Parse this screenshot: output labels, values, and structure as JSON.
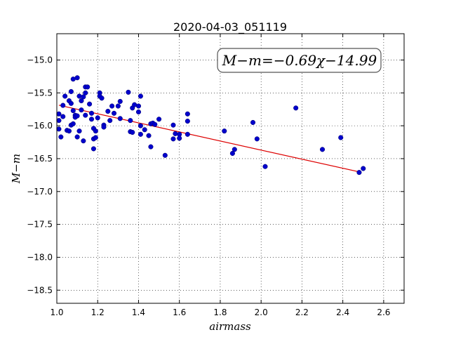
{
  "chart_data": {
    "type": "scatter",
    "title": "2020-04-03_051119",
    "xlabel": "airmass",
    "ylabel": "M−m",
    "xlim": [
      1.0,
      2.7
    ],
    "ylim": [
      -18.7,
      -14.6
    ],
    "x_ticks": [
      "1.0",
      "1.2",
      "1.4",
      "1.6",
      "1.8",
      "2.0",
      "2.2",
      "2.4",
      "2.6"
    ],
    "y_ticks": [
      "−15.0",
      "−15.5",
      "−16.0",
      "−16.5",
      "−17.0",
      "−17.5",
      "−18.0",
      "−18.5"
    ],
    "grid": true,
    "annotation": "M−m=−0.69χ−14.99",
    "annotation_position": "top-right",
    "colors": {
      "points": "#0000cc",
      "fit": "#dd0000"
    },
    "fit": {
      "slope": -0.69,
      "intercept": -14.99,
      "x_range": [
        1.01,
        2.48
      ]
    },
    "points": [
      [
        1.01,
        -15.82
      ],
      [
        1.01,
        -15.92
      ],
      [
        1.01,
        -16.05
      ],
      [
        1.02,
        -16.17
      ],
      [
        1.03,
        -15.69
      ],
      [
        1.03,
        -15.86
      ],
      [
        1.04,
        -15.55
      ],
      [
        1.05,
        -16.07
      ],
      [
        1.06,
        -16.08
      ],
      [
        1.06,
        -15.62
      ],
      [
        1.07,
        -15.48
      ],
      [
        1.07,
        -15.66
      ],
      [
        1.07,
        -15.99
      ],
      [
        1.08,
        -15.29
      ],
      [
        1.08,
        -15.97
      ],
      [
        1.08,
        -15.77
      ],
      [
        1.09,
        -15.84
      ],
      [
        1.09,
        -15.87
      ],
      [
        1.1,
        -15.27
      ],
      [
        1.1,
        -16.17
      ],
      [
        1.1,
        -15.85
      ],
      [
        1.11,
        -16.08
      ],
      [
        1.11,
        -15.55
      ],
      [
        1.12,
        -15.62
      ],
      [
        1.12,
        -15.76
      ],
      [
        1.13,
        -15.56
      ],
      [
        1.13,
        -16.23
      ],
      [
        1.14,
        -15.41
      ],
      [
        1.14,
        -15.5
      ],
      [
        1.14,
        -15.84
      ],
      [
        1.15,
        -15.41
      ],
      [
        1.16,
        -15.67
      ],
      [
        1.17,
        -15.81
      ],
      [
        1.17,
        -15.9
      ],
      [
        1.18,
        -16.2
      ],
      [
        1.18,
        -16.04
      ],
      [
        1.18,
        -16.35
      ],
      [
        1.19,
        -16.08
      ],
      [
        1.19,
        -16.18
      ],
      [
        1.2,
        -15.88
      ],
      [
        1.21,
        -15.5
      ],
      [
        1.21,
        -15.55
      ],
      [
        1.22,
        -15.58
      ],
      [
        1.23,
        -15.99
      ],
      [
        1.23,
        -16.02
      ],
      [
        1.25,
        -15.78
      ],
      [
        1.26,
        -15.92
      ],
      [
        1.27,
        -15.7
      ],
      [
        1.28,
        -15.81
      ],
      [
        1.3,
        -15.7
      ],
      [
        1.31,
        -15.63
      ],
      [
        1.31,
        -15.89
      ],
      [
        1.35,
        -15.49
      ],
      [
        1.36,
        -15.92
      ],
      [
        1.36,
        -16.09
      ],
      [
        1.37,
        -15.73
      ],
      [
        1.37,
        -16.1
      ],
      [
        1.38,
        -15.68
      ],
      [
        1.4,
        -15.7
      ],
      [
        1.4,
        -15.79
      ],
      [
        1.41,
        -15.55
      ],
      [
        1.41,
        -16.0
      ],
      [
        1.41,
        -16.13
      ],
      [
        1.43,
        -16.06
      ],
      [
        1.45,
        -16.15
      ],
      [
        1.46,
        -16.32
      ],
      [
        1.46,
        -15.97
      ],
      [
        1.47,
        -15.96
      ],
      [
        1.48,
        -15.98
      ],
      [
        1.5,
        -15.9
      ],
      [
        1.53,
        -16.45
      ],
      [
        1.57,
        -15.99
      ],
      [
        1.57,
        -16.2
      ],
      [
        1.58,
        -16.12
      ],
      [
        1.6,
        -16.13
      ],
      [
        1.6,
        -16.19
      ],
      [
        1.64,
        -15.82
      ],
      [
        1.64,
        -15.93
      ],
      [
        1.64,
        -16.13
      ],
      [
        1.82,
        -16.08
      ],
      [
        1.86,
        -16.42
      ],
      [
        1.87,
        -16.36
      ],
      [
        1.96,
        -15.95
      ],
      [
        1.98,
        -16.2
      ],
      [
        2.02,
        -16.62
      ],
      [
        2.17,
        -15.73
      ],
      [
        2.3,
        -16.36
      ],
      [
        2.39,
        -16.18
      ],
      [
        2.48,
        -16.71
      ],
      [
        2.5,
        -16.65
      ]
    ]
  }
}
